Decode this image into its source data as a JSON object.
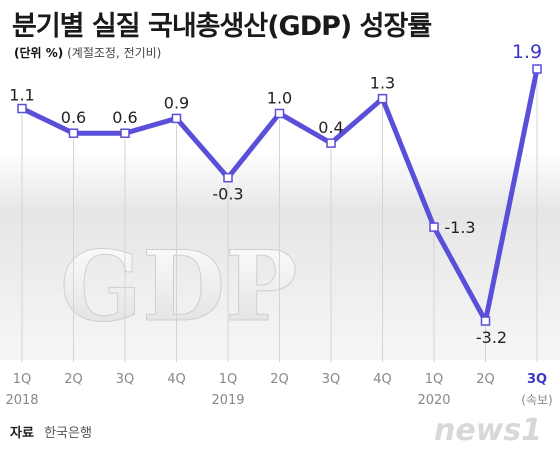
{
  "title": "분기별 실질 국내총생산(GDP) 성장률",
  "unit_label": "(단위 %)",
  "unit_note": "(계절조정, 전기비)",
  "source_label": "자료",
  "source_value": "한국은행",
  "watermark": "GDP",
  "logo_text": "news1",
  "colors": {
    "line": "#5a4fd8",
    "highlight": "#3a36c8",
    "text": "#222222",
    "axis": "#888888"
  },
  "chart_data": {
    "type": "line",
    "title": "분기별 실질 국내총생산(GDP) 성장률",
    "categories": [
      "1Q",
      "2Q",
      "3Q",
      "4Q",
      "1Q",
      "2Q",
      "3Q",
      "4Q",
      "1Q",
      "2Q",
      "3Q"
    ],
    "years": [
      {
        "label": "2018",
        "index": 0
      },
      {
        "label": "2019",
        "index": 4
      },
      {
        "label": "2020",
        "index": 8
      }
    ],
    "values": [
      1.1,
      0.6,
      0.6,
      0.9,
      -0.3,
      1.0,
      0.4,
      1.3,
      -1.3,
      -3.2,
      1.9
    ],
    "value_labels": [
      "1.1",
      "0.6",
      "0.6",
      "0.9",
      "-0.3",
      "1.0",
      "0.4",
      "1.3",
      "-1.3",
      "-3.2",
      "1.9"
    ],
    "highlight_index": 10,
    "highlight_note": "(속보)",
    "ylim": [
      -3.8,
      2.4
    ],
    "grid": false,
    "xlabel": "",
    "ylabel": ""
  }
}
